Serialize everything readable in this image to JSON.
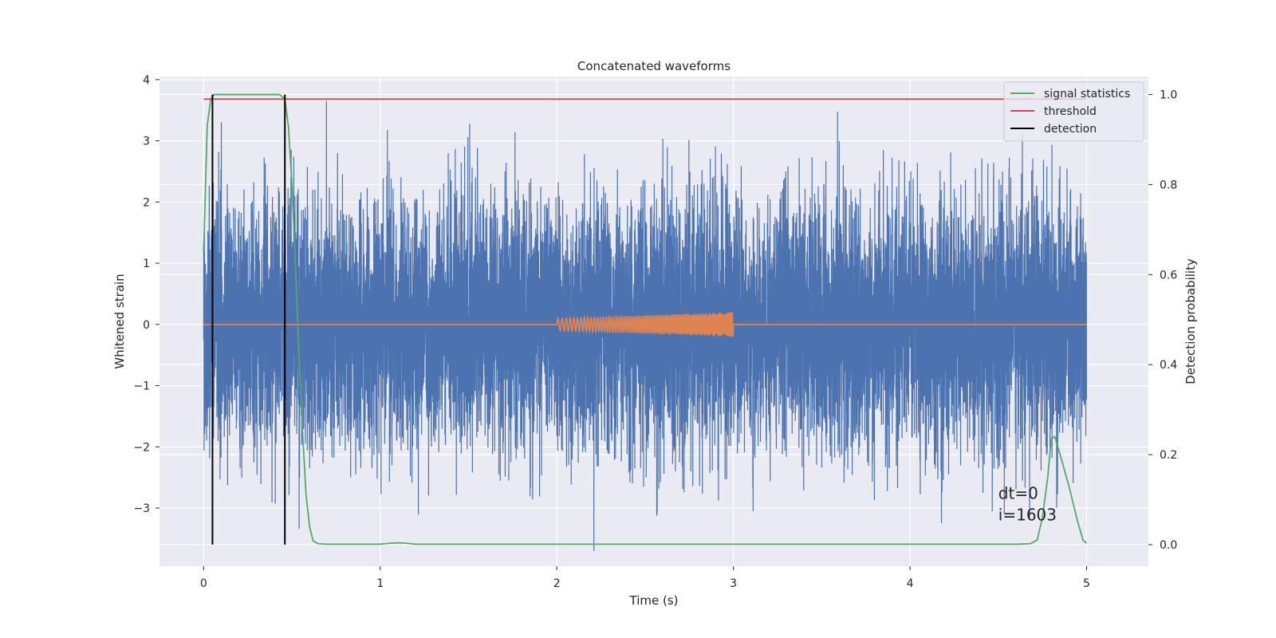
{
  "chart_data": {
    "type": "line",
    "title": "Concatenated waveforms",
    "xlabel": "Time (s)",
    "ylabel": "Whitened strain",
    "y2label": "Detection probability",
    "xlim": [
      -0.25,
      5.35
    ],
    "ylim": [
      -3.95,
      4.05
    ],
    "y2lim": [
      -0.048,
      1.04
    ],
    "xticks": [
      0,
      1,
      2,
      3,
      4,
      5
    ],
    "yticks": [
      -3,
      -2,
      -1,
      0,
      1,
      2,
      3,
      4
    ],
    "y2ticks": [
      0.0,
      0.2,
      0.4,
      0.6,
      0.8,
      1.0
    ],
    "xtick_labels": [
      "0",
      "1",
      "2",
      "3",
      "4",
      "5"
    ],
    "ytick_labels": [
      "−3",
      "−2",
      "−1",
      "0",
      "1",
      "2",
      "3",
      "4"
    ],
    "y2tick_labels": [
      "0.0",
      "0.2",
      "0.4",
      "0.6",
      "0.8",
      "1.0"
    ],
    "grid": true,
    "legend_position": "top-right",
    "series": [
      {
        "name": "",
        "axis": "left",
        "color": "#4c72b0",
        "kind": "noise",
        "x_range": [
          0,
          5
        ],
        "sample_rate": 2048,
        "envelope": 3.7,
        "typical_amplitude": 1.0
      },
      {
        "name": "",
        "axis": "left",
        "color": "#dd8452",
        "kind": "chirp",
        "x_range": [
          0,
          5
        ],
        "chirp_start": 2.0,
        "chirp_end": 3.0,
        "amplitude_start": 0.1,
        "amplitude_end": 0.2
      },
      {
        "name": "signal statistics",
        "axis": "right",
        "color": "#55a868",
        "x": [
          0.0,
          0.02,
          0.04,
          0.06,
          0.08,
          0.1,
          0.2,
          0.3,
          0.4,
          0.43,
          0.46,
          0.48,
          0.5,
          0.52,
          0.54,
          0.56,
          0.58,
          0.6,
          0.62,
          0.65,
          0.7,
          0.8,
          0.9,
          1.0,
          1.05,
          1.1,
          1.15,
          1.2,
          1.3,
          2.0,
          3.0,
          4.0,
          4.6,
          4.68,
          4.72,
          4.75,
          4.78,
          4.8,
          4.82,
          4.85,
          4.9,
          4.95,
          4.98,
          5.0
        ],
        "y": [
          0.65,
          0.93,
          0.99,
          1.0,
          1.0,
          1.0,
          1.0,
          1.0,
          1.0,
          1.0,
          0.99,
          0.93,
          0.8,
          0.62,
          0.42,
          0.25,
          0.11,
          0.04,
          0.008,
          0.002,
          0.001,
          0.001,
          0.001,
          0.001,
          0.003,
          0.004,
          0.003,
          0.001,
          0.001,
          0.001,
          0.001,
          0.001,
          0.001,
          0.002,
          0.01,
          0.06,
          0.15,
          0.235,
          0.24,
          0.2,
          0.13,
          0.05,
          0.01,
          0.003
        ]
      },
      {
        "name": "threshold",
        "axis": "right",
        "color": "#c44e52",
        "x": [
          0,
          5
        ],
        "y": [
          0.99,
          0.99
        ]
      },
      {
        "name": "detection",
        "axis": "right",
        "color": "#000000",
        "x_positions": [
          0.05,
          0.46
        ],
        "y_range": [
          0.0,
          1.0
        ]
      }
    ],
    "annotations": [
      {
        "text": "dt=0",
        "x": 4.5,
        "y": -2.85
      },
      {
        "text": "i=1603",
        "x": 4.5,
        "y": -3.2
      }
    ],
    "colors": {
      "background": "#eaeaf2",
      "grid": "#ffffff",
      "text": "#262626"
    }
  }
}
